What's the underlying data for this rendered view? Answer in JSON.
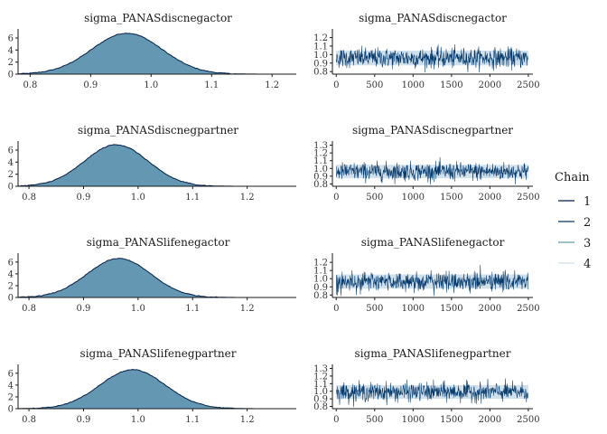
{
  "legend": {
    "title": "Chain",
    "items": [
      {
        "label": "1",
        "color": "#011f4b"
      },
      {
        "label": "2",
        "color": "#03396c"
      },
      {
        "label": "3",
        "color": "#6497b1"
      },
      {
        "label": "4",
        "color": "#d1e1ec"
      }
    ]
  },
  "colors": {
    "density_fill": "#6497b1",
    "density_line": "#011f4b",
    "trace_band": "#d1e1ec",
    "trace_line": "#03396c"
  },
  "chart_data": [
    {
      "type": "area",
      "title": "sigma_PANASdiscnegactor",
      "xlim": [
        0.78,
        1.24
      ],
      "ylim": [
        0,
        7.2
      ],
      "mean": 0.96,
      "sd": 0.058,
      "peak": 6.8,
      "xticks": [
        "0.8",
        "0.9",
        "1.0",
        "1.1",
        "1.2"
      ],
      "xtick_values": [
        0.8,
        0.9,
        1.0,
        1.1,
        1.2
      ],
      "yticks": [
        "0",
        "2",
        "4",
        "6"
      ],
      "ytick_values": [
        0,
        2,
        4,
        6
      ]
    },
    {
      "type": "line",
      "title": "sigma_PANASdiscnegactor",
      "xlim": [
        -50,
        2560
      ],
      "ylim": [
        0.77,
        1.28
      ],
      "center": 0.96,
      "spread": 0.058,
      "iterations": 2500,
      "xticks": [
        "0",
        "500",
        "1000",
        "1500",
        "2000",
        "2500"
      ],
      "xtick_values": [
        0,
        500,
        1000,
        1500,
        2000,
        2500
      ],
      "yticks": [
        "0.8",
        "0.9",
        "1.0",
        "1.1",
        "1.2"
      ],
      "ytick_values": [
        0.8,
        0.9,
        1.0,
        1.1,
        1.2
      ]
    },
    {
      "type": "area",
      "title": "sigma_PANASdiscnegpartner",
      "xlim": [
        0.78,
        1.29
      ],
      "ylim": [
        0,
        7.2
      ],
      "mean": 0.96,
      "sd": 0.058,
      "peak": 6.9,
      "xticks": [
        "0.8",
        "0.9",
        "1.0",
        "1.1",
        "1.2"
      ],
      "xtick_values": [
        0.8,
        0.9,
        1.0,
        1.1,
        1.2
      ],
      "yticks": [
        "0",
        "2",
        "4",
        "6"
      ],
      "ytick_values": [
        0,
        2,
        4,
        6
      ]
    },
    {
      "type": "line",
      "title": "sigma_PANASdiscnegpartner",
      "xlim": [
        -50,
        2560
      ],
      "ylim": [
        0.77,
        1.33
      ],
      "center": 0.96,
      "spread": 0.058,
      "iterations": 2500,
      "xticks": [
        "0",
        "500",
        "1000",
        "1500",
        "2000",
        "2500"
      ],
      "xtick_values": [
        0,
        500,
        1000,
        1500,
        2000,
        2500
      ],
      "yticks": [
        "0.8",
        "0.9",
        "1.0",
        "1.1",
        "1.2",
        "1.3"
      ],
      "ytick_values": [
        0.8,
        0.9,
        1.0,
        1.1,
        1.2,
        1.3
      ]
    },
    {
      "type": "area",
      "title": "sigma_PANASlifenegactor",
      "xlim": [
        0.78,
        1.29
      ],
      "ylim": [
        0,
        7.2
      ],
      "mean": 0.965,
      "sd": 0.058,
      "peak": 6.6,
      "xticks": [
        "0.8",
        "0.9",
        "1.0",
        "1.1",
        "1.2"
      ],
      "xtick_values": [
        0.8,
        0.9,
        1.0,
        1.1,
        1.2
      ],
      "yticks": [
        "0",
        "2",
        "4",
        "6"
      ],
      "ytick_values": [
        0,
        2,
        4,
        6
      ]
    },
    {
      "type": "line",
      "title": "sigma_PANASlifenegactor",
      "xlim": [
        -50,
        2560
      ],
      "ylim": [
        0.77,
        1.29
      ],
      "center": 0.965,
      "spread": 0.058,
      "iterations": 2500,
      "xticks": [
        "0",
        "500",
        "1000",
        "1500",
        "2000",
        "2500"
      ],
      "xtick_values": [
        0,
        500,
        1000,
        1500,
        2000,
        2500
      ],
      "yticks": [
        "0.8",
        "0.9",
        "1.0",
        "1.1",
        "1.2"
      ],
      "ytick_values": [
        0.8,
        0.9,
        1.0,
        1.1,
        1.2
      ]
    },
    {
      "type": "area",
      "title": "sigma_PANASlifenegpartner",
      "xlim": [
        0.78,
        1.29
      ],
      "ylim": [
        0,
        7.2
      ],
      "mean": 0.99,
      "sd": 0.06,
      "peak": 6.6,
      "xticks": [
        "0.8",
        "0.9",
        "1.0",
        "1.1",
        "1.2"
      ],
      "xtick_values": [
        0.8,
        0.9,
        1.0,
        1.1,
        1.2
      ],
      "yticks": [
        "0",
        "2",
        "4",
        "6"
      ],
      "ytick_values": [
        0,
        2,
        4,
        6
      ]
    },
    {
      "type": "line",
      "title": "sigma_PANASlifenegpartner",
      "xlim": [
        -50,
        2560
      ],
      "ylim": [
        0.77,
        1.33
      ],
      "center": 0.99,
      "spread": 0.06,
      "iterations": 2500,
      "xticks": [
        "0",
        "500",
        "1000",
        "1500",
        "2000",
        "2500"
      ],
      "xtick_values": [
        0,
        500,
        1000,
        1500,
        2000,
        2500
      ],
      "yticks": [
        "0.8",
        "0.9",
        "1.0",
        "1.1",
        "1.2",
        "1.3"
      ],
      "ytick_values": [
        0.8,
        0.9,
        1.0,
        1.1,
        1.2,
        1.3
      ]
    }
  ]
}
